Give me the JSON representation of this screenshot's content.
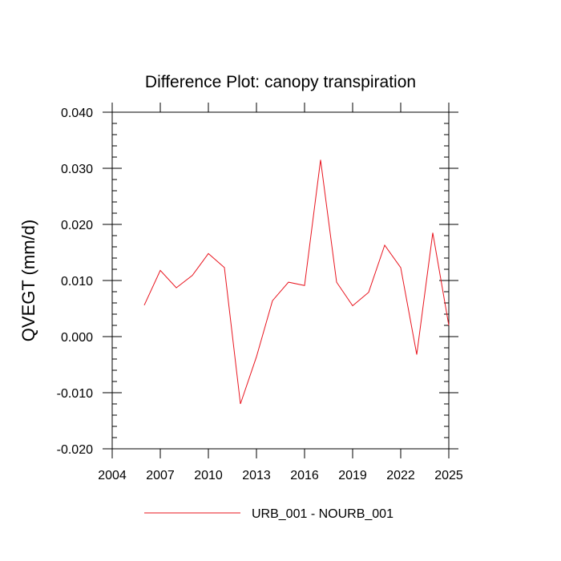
{
  "chart_data": {
    "type": "line",
    "title": "Difference Plot: canopy transpiration",
    "xlabel": "",
    "ylabel": "QVEGT  (mm/d)",
    "xlim": [
      2004,
      2025
    ],
    "ylim": [
      -0.02,
      0.04
    ],
    "x_ticks": [
      2004,
      2007,
      2010,
      2013,
      2016,
      2019,
      2022,
      2025
    ],
    "x_tick_labels": [
      "2004",
      "2007",
      "2010",
      "2013",
      "2016",
      "2019",
      "2022",
      "2025"
    ],
    "y_ticks": [
      -0.02,
      -0.01,
      0.0,
      0.01,
      0.02,
      0.03,
      0.04
    ],
    "y_tick_labels": [
      "-0.020",
      "-0.010",
      "0.000",
      "0.010",
      "0.020",
      "0.030",
      "0.040"
    ],
    "grid": false,
    "legend_position": "bottom-center",
    "series": [
      {
        "name": "URB_001 - NOURB_001",
        "color": "#e8141e",
        "x": [
          2006,
          2007,
          2008,
          2009,
          2010,
          2011,
          2012,
          2013,
          2014,
          2015,
          2016,
          2017,
          2018,
          2019,
          2020,
          2021,
          2022,
          2023,
          2024,
          2025
        ],
        "values": [
          0.0056,
          0.0118,
          0.0087,
          0.0109,
          0.0148,
          0.0123,
          -0.012,
          -0.0036,
          0.0064,
          0.0097,
          0.0091,
          0.0315,
          0.0097,
          0.0055,
          0.0079,
          0.0163,
          0.0123,
          -0.0032,
          0.0185,
          0.002
        ]
      }
    ]
  }
}
